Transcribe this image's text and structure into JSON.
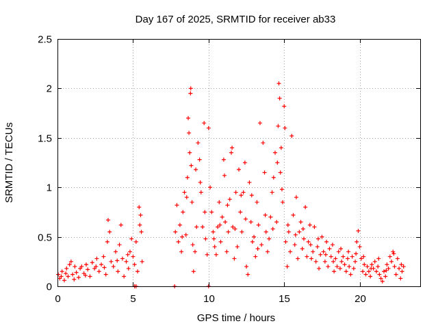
{
  "chart_data": {
    "type": "scatter",
    "title": "Day 167 of 2025, SRMTID for receiver ab33",
    "xlabel": "GPS time / hours",
    "ylabel": "SRMTID / TECUs",
    "xlim": [
      0,
      24
    ],
    "ylim": [
      0,
      2.5
    ],
    "xticks": [
      0,
      5,
      10,
      15,
      20
    ],
    "xtick_labels": [
      "0",
      "5",
      "10",
      "15",
      "20"
    ],
    "yticks": [
      0,
      0.5,
      1,
      1.5,
      2,
      2.5
    ],
    "ytick_labels": [
      "0",
      "0.5",
      "1",
      "1.5",
      "2",
      "2.5"
    ],
    "grid": true,
    "marker": "+",
    "series": [
      {
        "name": "SRMTID",
        "color": "#ff0000",
        "points": [
          [
            0.05,
            0.12
          ],
          [
            0.15,
            0.08
          ],
          [
            0.3,
            0.15
          ],
          [
            0.45,
            0.06
          ],
          [
            0.6,
            0.18
          ],
          [
            0.7,
            0.1
          ],
          [
            0.8,
            0.22
          ],
          [
            0.9,
            0.25
          ],
          [
            1.0,
            0.12
          ],
          [
            1.1,
            0.07
          ],
          [
            1.25,
            0.14
          ],
          [
            1.4,
            0.09
          ],
          [
            1.5,
            0.18
          ],
          [
            1.6,
            0.2
          ],
          [
            1.75,
            0.13
          ],
          [
            1.9,
            0.22
          ],
          [
            2.0,
            0.17
          ],
          [
            2.15,
            0.1
          ],
          [
            2.3,
            0.24
          ],
          [
            2.45,
            0.18
          ],
          [
            2.6,
            0.28
          ],
          [
            2.75,
            0.15
          ],
          [
            2.9,
            0.22
          ],
          [
            3.05,
            0.3
          ],
          [
            3.2,
            0.12
          ],
          [
            3.3,
            0.45
          ],
          [
            3.35,
            0.67
          ],
          [
            3.45,
            0.55
          ],
          [
            3.55,
            0.25
          ],
          [
            3.7,
            0.2
          ],
          [
            3.85,
            0.35
          ],
          [
            4.0,
            0.15
          ],
          [
            4.1,
            0.42
          ],
          [
            4.2,
            0.62
          ],
          [
            4.3,
            0.28
          ],
          [
            4.4,
            0.1
          ],
          [
            4.55,
            0.25
          ],
          [
            4.7,
            0.18
          ],
          [
            4.8,
            0.35
          ],
          [
            4.9,
            0.48
          ],
          [
            5.0,
            0.3
          ],
          [
            5.1,
            0.22
          ],
          [
            5.2,
            0.45
          ],
          [
            5.3,
            0.15
          ],
          [
            5.4,
            0.8
          ],
          [
            5.5,
            0.72
          ],
          [
            5.55,
            0.55
          ],
          [
            5.6,
            0.25
          ],
          [
            5.1,
            0.0
          ],
          [
            5.2,
            0.0
          ],
          [
            7.75,
            0.0
          ],
          [
            7.8,
            0.55
          ],
          [
            7.9,
            0.82
          ],
          [
            8.0,
            0.45
          ],
          [
            8.1,
            0.62
          ],
          [
            8.2,
            0.35
          ],
          [
            8.3,
            0.75
          ],
          [
            8.4,
            0.95
          ],
          [
            8.5,
            0.52
          ],
          [
            8.6,
            1.1
          ],
          [
            8.65,
            1.7
          ],
          [
            8.7,
            1.55
          ],
          [
            8.75,
            1.35
          ],
          [
            8.8,
            1.95
          ],
          [
            8.82,
            2.0
          ],
          [
            8.85,
            1.22
          ],
          [
            8.9,
            0.85
          ],
          [
            8.95,
            0.42
          ],
          [
            9.0,
            0.15
          ],
          [
            9.1,
            0.35
          ],
          [
            9.2,
            0.6
          ],
          [
            9.3,
            1.45
          ],
          [
            9.4,
            1.28
          ],
          [
            9.5,
            0.95
          ],
          [
            9.6,
            0.6
          ],
          [
            9.7,
            1.65
          ],
          [
            9.8,
            0.48
          ],
          [
            9.9,
            0.32
          ],
          [
            10.0,
            1.6
          ],
          [
            10.0,
            0.0
          ],
          [
            10.1,
            1.0
          ],
          [
            10.2,
            0.75
          ],
          [
            10.3,
            0.55
          ],
          [
            10.4,
            0.4
          ],
          [
            10.5,
            0.32
          ],
          [
            10.6,
            0.6
          ],
          [
            10.7,
            0.85
          ],
          [
            10.8,
            0.45
          ],
          [
            10.9,
            0.7
          ],
          [
            11.0,
            1.28
          ],
          [
            11.05,
            1.12
          ],
          [
            11.1,
            0.65
          ],
          [
            11.2,
            0.35
          ],
          [
            11.3,
            0.55
          ],
          [
            11.4,
            0.88
          ],
          [
            11.5,
            1.35
          ],
          [
            11.55,
            1.4
          ],
          [
            11.6,
            0.6
          ],
          [
            11.7,
            0.28
          ],
          [
            11.8,
            0.95
          ],
          [
            11.9,
            0.4
          ],
          [
            12.0,
            1.18
          ],
          [
            12.1,
            0.75
          ],
          [
            12.2,
            0.55
          ],
          [
            12.3,
            0.95
          ],
          [
            12.4,
            1.25
          ],
          [
            12.5,
            0.2
          ],
          [
            12.6,
            0.12
          ],
          [
            12.7,
            1.05
          ],
          [
            12.8,
            0.65
          ],
          [
            12.9,
            0.45
          ],
          [
            13.0,
            0.5
          ],
          [
            13.1,
            0.3
          ],
          [
            13.2,
            0.85
          ],
          [
            13.3,
            0.62
          ],
          [
            13.4,
            1.65
          ],
          [
            13.5,
            0.42
          ],
          [
            13.6,
            1.45
          ],
          [
            13.7,
            1.15
          ],
          [
            13.8,
            0.55
          ],
          [
            13.9,
            0.35
          ],
          [
            14.0,
            0.48
          ],
          [
            14.1,
            0.7
          ],
          [
            14.2,
            0.95
          ],
          [
            14.3,
            1.1
          ],
          [
            14.4,
            1.35
          ],
          [
            14.5,
            0.65
          ],
          [
            14.6,
            1.62
          ],
          [
            14.65,
            2.05
          ],
          [
            14.7,
            1.9
          ],
          [
            14.75,
            1.15
          ],
          [
            14.8,
            1.4
          ],
          [
            14.9,
            0.85
          ],
          [
            15.0,
            1.82
          ],
          [
            15.05,
            1.6
          ],
          [
            15.1,
            0.45
          ],
          [
            15.2,
            0.2
          ],
          [
            15.3,
            0.55
          ],
          [
            15.4,
            0.35
          ],
          [
            15.5,
            1.52
          ],
          [
            15.6,
            0.72
          ],
          [
            15.7,
            0.42
          ],
          [
            15.8,
            0.9
          ],
          [
            15.9,
            0.28
          ],
          [
            16.0,
            0.55
          ],
          [
            16.1,
            0.65
          ],
          [
            16.2,
            0.38
          ],
          [
            16.3,
            0.48
          ],
          [
            16.4,
            0.8
          ],
          [
            16.5,
            0.3
          ],
          [
            16.6,
            0.45
          ],
          [
            16.7,
            0.62
          ],
          [
            16.8,
            0.28
          ],
          [
            16.9,
            0.35
          ],
          [
            17.0,
            0.6
          ],
          [
            17.1,
            0.25
          ],
          [
            17.2,
            0.4
          ],
          [
            17.3,
            0.18
          ],
          [
            17.4,
            0.32
          ],
          [
            17.5,
            0.5
          ],
          [
            17.6,
            0.35
          ],
          [
            17.7,
            0.25
          ],
          [
            17.8,
            0.45
          ],
          [
            17.9,
            0.2
          ],
          [
            18.0,
            0.38
          ],
          [
            18.1,
            0.3
          ],
          [
            18.2,
            0.42
          ],
          [
            18.3,
            0.15
          ],
          [
            18.4,
            0.28
          ],
          [
            18.5,
            0.2
          ],
          [
            18.6,
            0.35
          ],
          [
            18.7,
            0.18
          ],
          [
            18.8,
            0.25
          ],
          [
            18.9,
            0.3
          ],
          [
            19.0,
            0.22
          ],
          [
            19.1,
            0.15
          ],
          [
            19.2,
            0.28
          ],
          [
            19.3,
            0.2
          ],
          [
            19.4,
            0.12
          ],
          [
            19.5,
            0.3
          ],
          [
            19.6,
            0.18
          ],
          [
            19.7,
            0.25
          ],
          [
            19.8,
            0.45
          ],
          [
            19.9,
            0.56
          ],
          [
            20.0,
            0.4
          ],
          [
            20.1,
            0.28
          ],
          [
            20.2,
            0.15
          ],
          [
            20.3,
            0.22
          ],
          [
            20.4,
            0.12
          ],
          [
            20.5,
            0.2
          ],
          [
            20.6,
            0.15
          ],
          [
            20.7,
            0.1
          ],
          [
            20.8,
            0.22
          ],
          [
            20.9,
            0.18
          ],
          [
            21.0,
            0.25
          ],
          [
            21.1,
            0.15
          ],
          [
            21.2,
            0.2
          ],
          [
            21.3,
            0.12
          ],
          [
            21.4,
            0.08
          ],
          [
            21.5,
            0.05
          ],
          [
            21.6,
            0.15
          ],
          [
            21.7,
            0.1
          ],
          [
            21.8,
            0.22
          ],
          [
            21.9,
            0.18
          ],
          [
            22.0,
            0.3
          ],
          [
            22.1,
            0.25
          ],
          [
            22.2,
            0.35
          ],
          [
            22.3,
            0.2
          ],
          [
            22.4,
            0.12
          ],
          [
            22.5,
            0.28
          ],
          [
            22.6,
            0.18
          ],
          [
            22.7,
            0.08
          ],
          [
            22.8,
            0.15
          ],
          [
            22.9,
            0.2
          ],
          [
            0.25,
            0.1
          ],
          [
            0.55,
            0.13
          ],
          [
            1.15,
            0.2
          ],
          [
            1.85,
            0.11
          ],
          [
            2.55,
            0.2
          ],
          [
            3.1,
            0.19
          ],
          [
            3.95,
            0.26
          ],
          [
            4.65,
            0.32
          ],
          [
            5.45,
            0.62
          ],
          [
            8.25,
            0.5
          ],
          [
            8.55,
            0.9
          ],
          [
            9.15,
            1.18
          ],
          [
            9.45,
            1.05
          ],
          [
            9.75,
            0.75
          ],
          [
            10.35,
            0.48
          ],
          [
            10.75,
            0.62
          ],
          [
            11.25,
            0.82
          ],
          [
            11.75,
            0.58
          ],
          [
            12.15,
            0.92
          ],
          [
            12.45,
            0.68
          ],
          [
            12.85,
            0.92
          ],
          [
            13.25,
            0.38
          ],
          [
            13.75,
            0.72
          ],
          [
            14.25,
            0.58
          ],
          [
            14.55,
            1.25
          ],
          [
            14.85,
            0.98
          ],
          [
            15.25,
            0.62
          ],
          [
            15.75,
            0.52
          ],
          [
            16.25,
            0.58
          ],
          [
            16.75,
            0.42
          ],
          [
            17.25,
            0.48
          ],
          [
            17.75,
            0.32
          ],
          [
            18.25,
            0.25
          ],
          [
            18.75,
            0.38
          ],
          [
            19.25,
            0.35
          ],
          [
            19.75,
            0.33
          ],
          [
            20.25,
            0.3
          ],
          [
            20.75,
            0.18
          ],
          [
            21.25,
            0.28
          ],
          [
            21.75,
            0.16
          ],
          [
            22.25,
            0.33
          ],
          [
            22.75,
            0.22
          ]
        ]
      }
    ]
  }
}
